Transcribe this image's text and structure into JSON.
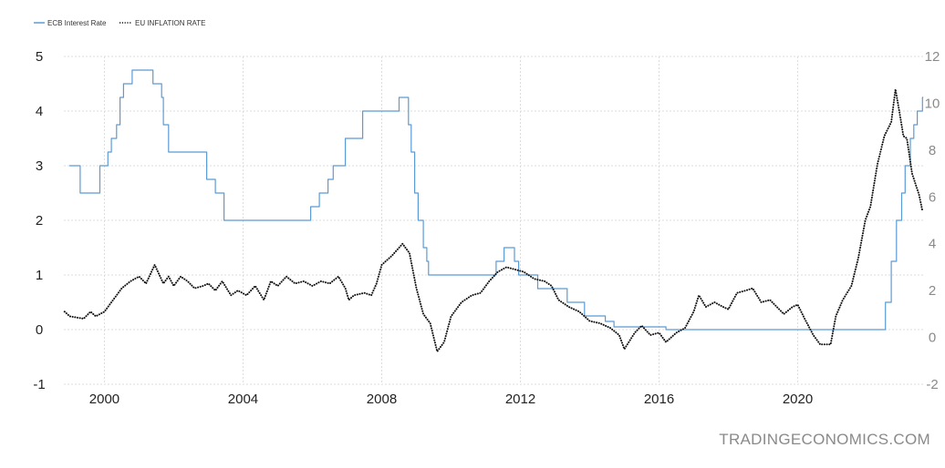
{
  "chart_data": {
    "type": "line",
    "title": "",
    "xlabel": "",
    "ylabel": "",
    "source": "TRADINGECONOMICS.COM",
    "xlim": [
      1998.83,
      2023.67
    ],
    "x_ticks": [
      2000,
      2004,
      2008,
      2012,
      2016,
      2020
    ],
    "y_left": {
      "lim": [
        -1,
        5
      ],
      "ticks": [
        -1,
        0,
        1,
        2,
        3,
        4,
        5
      ]
    },
    "y_right": {
      "lim": [
        -2,
        12
      ],
      "ticks": [
        -2,
        0,
        2,
        4,
        6,
        8,
        10,
        12
      ]
    },
    "grid": true,
    "legend_position": "top-left",
    "colors": {
      "ecb": "#5b9bd5",
      "inflation": "#111111",
      "grid": "#dddddd",
      "axis_left": "#222222",
      "axis_right": "#8a8a8a"
    },
    "series": [
      {
        "name": "ECB Interest Rate",
        "axis": "left",
        "style": "step",
        "color": "#5b9bd5",
        "points": [
          [
            1999.0,
            3.0
          ],
          [
            1999.3,
            2.5
          ],
          [
            1999.87,
            3.0
          ],
          [
            2000.1,
            3.25
          ],
          [
            2000.2,
            3.5
          ],
          [
            2000.35,
            3.75
          ],
          [
            2000.45,
            4.25
          ],
          [
            2000.55,
            4.5
          ],
          [
            2000.8,
            4.75
          ],
          [
            2001.4,
            4.5
          ],
          [
            2001.65,
            4.25
          ],
          [
            2001.7,
            3.75
          ],
          [
            2001.85,
            3.25
          ],
          [
            2002.95,
            2.75
          ],
          [
            2003.2,
            2.5
          ],
          [
            2003.45,
            2.0
          ],
          [
            2005.95,
            2.25
          ],
          [
            2006.2,
            2.5
          ],
          [
            2006.45,
            2.75
          ],
          [
            2006.6,
            3.0
          ],
          [
            2006.95,
            3.5
          ],
          [
            2007.45,
            4.0
          ],
          [
            2008.5,
            4.25
          ],
          [
            2008.77,
            3.75
          ],
          [
            2008.85,
            3.25
          ],
          [
            2008.95,
            2.5
          ],
          [
            2009.05,
            2.0
          ],
          [
            2009.2,
            1.5
          ],
          [
            2009.3,
            1.25
          ],
          [
            2009.35,
            1.0
          ],
          [
            2011.3,
            1.25
          ],
          [
            2011.53,
            1.5
          ],
          [
            2011.83,
            1.25
          ],
          [
            2011.95,
            1.0
          ],
          [
            2012.5,
            0.75
          ],
          [
            2013.35,
            0.5
          ],
          [
            2013.85,
            0.25
          ],
          [
            2014.45,
            0.15
          ],
          [
            2014.7,
            0.05
          ],
          [
            2016.2,
            0.0
          ],
          [
            2022.53,
            0.5
          ],
          [
            2022.7,
            1.25
          ],
          [
            2022.85,
            2.0
          ],
          [
            2023.0,
            2.5
          ],
          [
            2023.1,
            3.0
          ],
          [
            2023.25,
            3.5
          ],
          [
            2023.35,
            3.75
          ],
          [
            2023.45,
            4.0
          ],
          [
            2023.6,
            4.25
          ]
        ]
      },
      {
        "name": "EU INFLATION RATE",
        "axis": "right",
        "style": "dotted",
        "color": "#111111",
        "points": [
          [
            1998.85,
            1.1
          ],
          [
            1999.0,
            0.9
          ],
          [
            1999.4,
            0.8
          ],
          [
            1999.6,
            1.1
          ],
          [
            1999.75,
            0.9
          ],
          [
            2000.0,
            1.1
          ],
          [
            2000.2,
            1.5
          ],
          [
            2000.5,
            2.1
          ],
          [
            2000.75,
            2.4
          ],
          [
            2001.0,
            2.6
          ],
          [
            2001.2,
            2.3
          ],
          [
            2001.45,
            3.1
          ],
          [
            2001.7,
            2.3
          ],
          [
            2001.85,
            2.6
          ],
          [
            2002.0,
            2.2
          ],
          [
            2002.2,
            2.6
          ],
          [
            2002.4,
            2.4
          ],
          [
            2002.6,
            2.1
          ],
          [
            2002.85,
            2.2
          ],
          [
            2003.0,
            2.3
          ],
          [
            2003.2,
            2.0
          ],
          [
            2003.4,
            2.4
          ],
          [
            2003.65,
            1.8
          ],
          [
            2003.85,
            2.0
          ],
          [
            2004.1,
            1.8
          ],
          [
            2004.35,
            2.2
          ],
          [
            2004.6,
            1.6
          ],
          [
            2004.8,
            2.4
          ],
          [
            2005.0,
            2.2
          ],
          [
            2005.25,
            2.6
          ],
          [
            2005.5,
            2.3
          ],
          [
            2005.75,
            2.4
          ],
          [
            2006.0,
            2.2
          ],
          [
            2006.25,
            2.4
          ],
          [
            2006.5,
            2.3
          ],
          [
            2006.75,
            2.6
          ],
          [
            2006.95,
            2.1
          ],
          [
            2007.05,
            1.6
          ],
          [
            2007.2,
            1.8
          ],
          [
            2007.5,
            1.9
          ],
          [
            2007.7,
            1.8
          ],
          [
            2007.85,
            2.3
          ],
          [
            2008.0,
            3.1
          ],
          [
            2008.3,
            3.5
          ],
          [
            2008.6,
            4.0
          ],
          [
            2008.8,
            3.6
          ],
          [
            2009.0,
            2.1
          ],
          [
            2009.2,
            1.0
          ],
          [
            2009.4,
            0.6
          ],
          [
            2009.6,
            -0.6
          ],
          [
            2009.8,
            -0.2
          ],
          [
            2010.0,
            0.9
          ],
          [
            2010.3,
            1.5
          ],
          [
            2010.6,
            1.8
          ],
          [
            2010.85,
            1.9
          ],
          [
            2011.1,
            2.4
          ],
          [
            2011.35,
            2.8
          ],
          [
            2011.6,
            3.0
          ],
          [
            2011.85,
            2.9
          ],
          [
            2012.1,
            2.8
          ],
          [
            2012.4,
            2.5
          ],
          [
            2012.7,
            2.4
          ],
          [
            2012.9,
            2.2
          ],
          [
            2013.1,
            1.6
          ],
          [
            2013.4,
            1.3
          ],
          [
            2013.7,
            1.1
          ],
          [
            2014.0,
            0.7
          ],
          [
            2014.3,
            0.6
          ],
          [
            2014.6,
            0.4
          ],
          [
            2014.85,
            0.1
          ],
          [
            2015.0,
            -0.5
          ],
          [
            2015.3,
            0.2
          ],
          [
            2015.5,
            0.5
          ],
          [
            2015.75,
            0.1
          ],
          [
            2016.0,
            0.2
          ],
          [
            2016.2,
            -0.2
          ],
          [
            2016.5,
            0.2
          ],
          [
            2016.75,
            0.4
          ],
          [
            2017.0,
            1.1
          ],
          [
            2017.15,
            1.8
          ],
          [
            2017.35,
            1.3
          ],
          [
            2017.6,
            1.5
          ],
          [
            2017.85,
            1.3
          ],
          [
            2018.0,
            1.2
          ],
          [
            2018.25,
            1.9
          ],
          [
            2018.5,
            2.0
          ],
          [
            2018.7,
            2.1
          ],
          [
            2018.95,
            1.5
          ],
          [
            2019.2,
            1.6
          ],
          [
            2019.4,
            1.3
          ],
          [
            2019.6,
            1.0
          ],
          [
            2019.85,
            1.3
          ],
          [
            2020.0,
            1.4
          ],
          [
            2020.2,
            0.8
          ],
          [
            2020.45,
            0.1
          ],
          [
            2020.65,
            -0.3
          ],
          [
            2020.95,
            -0.3
          ],
          [
            2021.1,
            0.9
          ],
          [
            2021.3,
            1.6
          ],
          [
            2021.55,
            2.2
          ],
          [
            2021.75,
            3.4
          ],
          [
            2021.95,
            5.0
          ],
          [
            2022.1,
            5.6
          ],
          [
            2022.3,
            7.4
          ],
          [
            2022.5,
            8.6
          ],
          [
            2022.7,
            9.2
          ],
          [
            2022.82,
            10.6
          ],
          [
            2022.95,
            9.5
          ],
          [
            2023.05,
            8.6
          ],
          [
            2023.15,
            8.5
          ],
          [
            2023.3,
            7.0
          ],
          [
            2023.5,
            6.1
          ],
          [
            2023.6,
            5.4
          ]
        ]
      }
    ]
  }
}
